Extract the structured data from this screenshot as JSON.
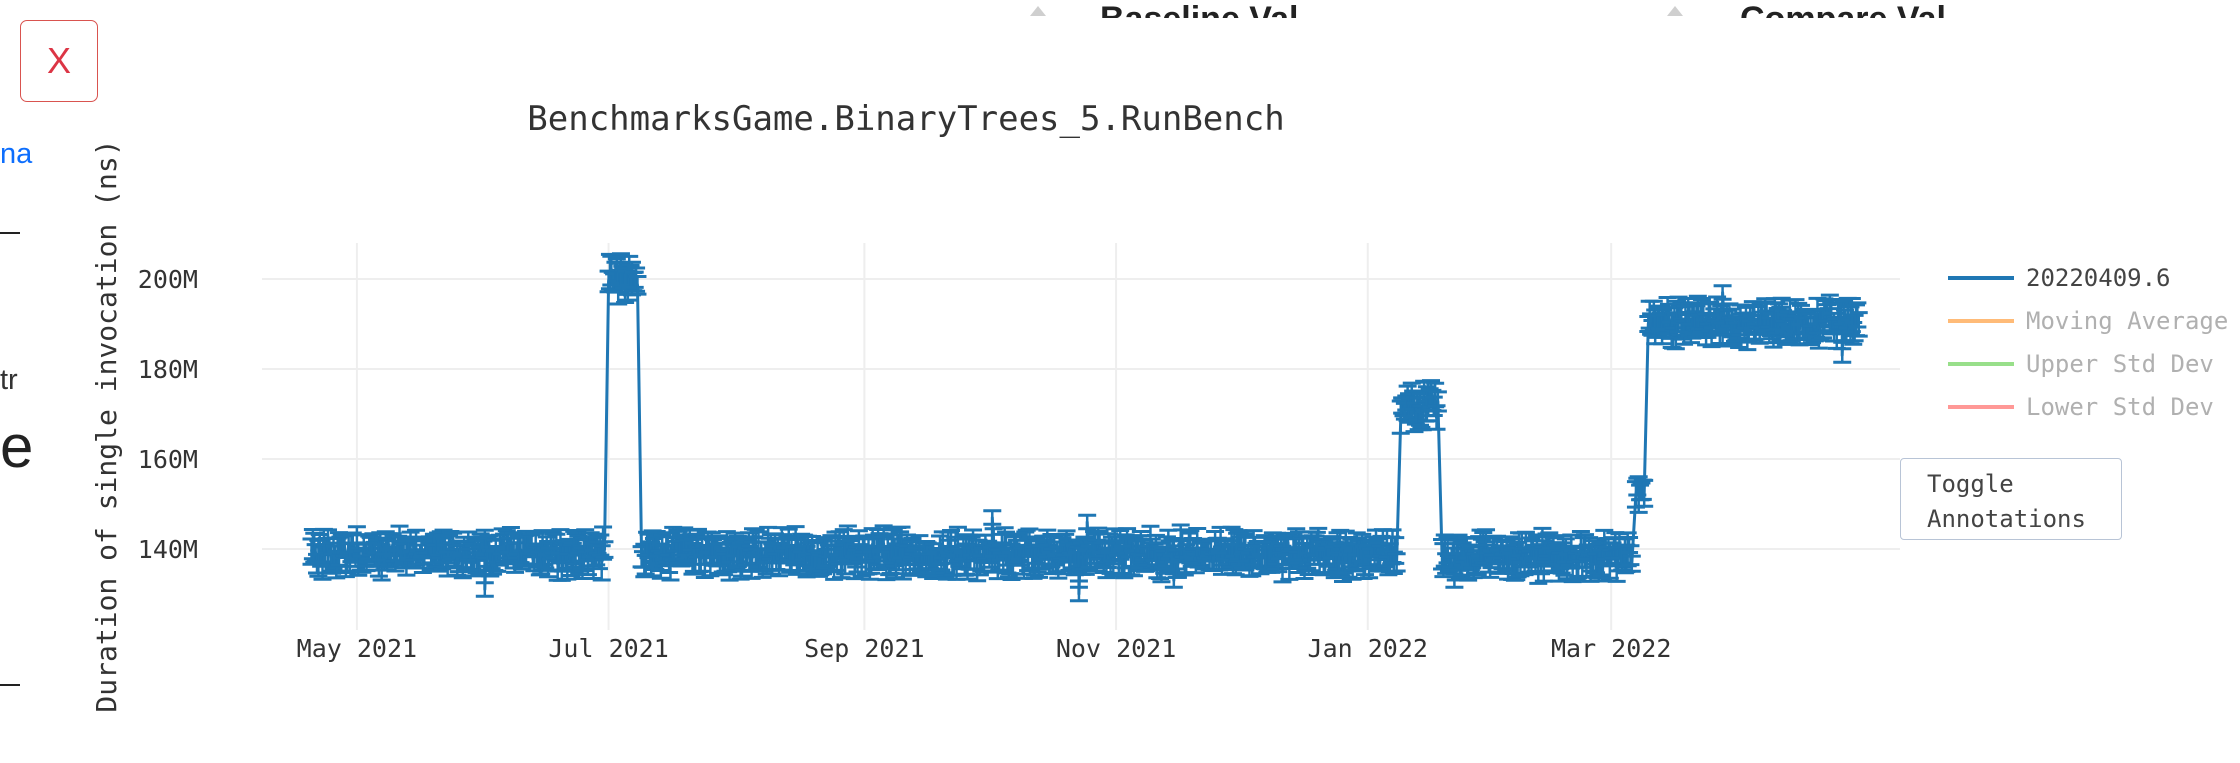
{
  "close_button": {
    "label": "X"
  },
  "toggle_button": {
    "label": "Toggle\nAnnotations"
  },
  "background_fragments": {
    "top_left_text": "Baseline Val",
    "top_right_text": "Compare Val",
    "left_link": "na",
    "left_text": "tr",
    "left_heading": "e"
  },
  "colors": {
    "series": "#1f77b4",
    "moving_average": "#ffbb78",
    "upper_std": "#98df8a",
    "lower_std": "#ff9896",
    "grid": "#eeeeee",
    "close_border": "#d9534f"
  },
  "chart_data": {
    "type": "line",
    "title": "BenchmarksGame.BinaryTrees_5.RunBench",
    "xlabel": "",
    "ylabel": "Duration of single invocation (ns)",
    "x_ticks": [
      "May 2021",
      "Jul 2021",
      "Sep 2021",
      "Nov 2021",
      "Jan 2022",
      "Mar 2022"
    ],
    "y_ticks": [
      "140M",
      "160M",
      "180M",
      "200M"
    ],
    "y_tick_values": [
      140000000,
      160000000,
      180000000,
      200000000
    ],
    "ylim": [
      122000000,
      208000000
    ],
    "xlim": [
      "2021-04-08",
      "2022-05-10"
    ],
    "grid": true,
    "error_bars": true,
    "legend_position": "right",
    "legend": [
      {
        "name": "20220409.6",
        "active": true
      },
      {
        "name": "Moving Average",
        "active": false
      },
      {
        "name": "Upper Std Dev",
        "active": false
      },
      {
        "name": "Lower Std Dev",
        "active": false
      }
    ],
    "segments": [
      {
        "from": "2021-04-20",
        "to": "2021-06-30",
        "mean": 139000000,
        "spread": 2500000
      },
      {
        "from": "2021-07-01",
        "to": "2021-07-08",
        "mean": 200000000,
        "spread": 2000000
      },
      {
        "from": "2021-07-09",
        "to": "2022-01-08",
        "mean": 139000000,
        "spread": 2500000
      },
      {
        "from": "2022-01-09",
        "to": "2022-01-18",
        "mean": 172000000,
        "spread": 3000000
      },
      {
        "from": "2022-01-19",
        "to": "2022-03-06",
        "mean": 138500000,
        "spread": 2500000
      },
      {
        "from": "2022-03-07",
        "to": "2022-03-09",
        "mean": 153000000,
        "spread": 2000000
      },
      {
        "from": "2022-03-10",
        "to": "2022-04-30",
        "mean": 190000000,
        "spread": 2500000
      }
    ],
    "notable_points": [
      {
        "x": "2021-06-01",
        "y": 131000000
      },
      {
        "x": "2021-08-05",
        "y": 143000000
      },
      {
        "x": "2021-10-02",
        "y": 147000000
      },
      {
        "x": "2021-10-23",
        "y": 130000000
      },
      {
        "x": "2021-10-25",
        "y": 146000000
      },
      {
        "x": "2021-11-15",
        "y": 133000000
      },
      {
        "x": "2022-01-22",
        "y": 133000000
      },
      {
        "x": "2022-03-28",
        "y": 197000000
      },
      {
        "x": "2022-04-26",
        "y": 183000000
      }
    ]
  }
}
